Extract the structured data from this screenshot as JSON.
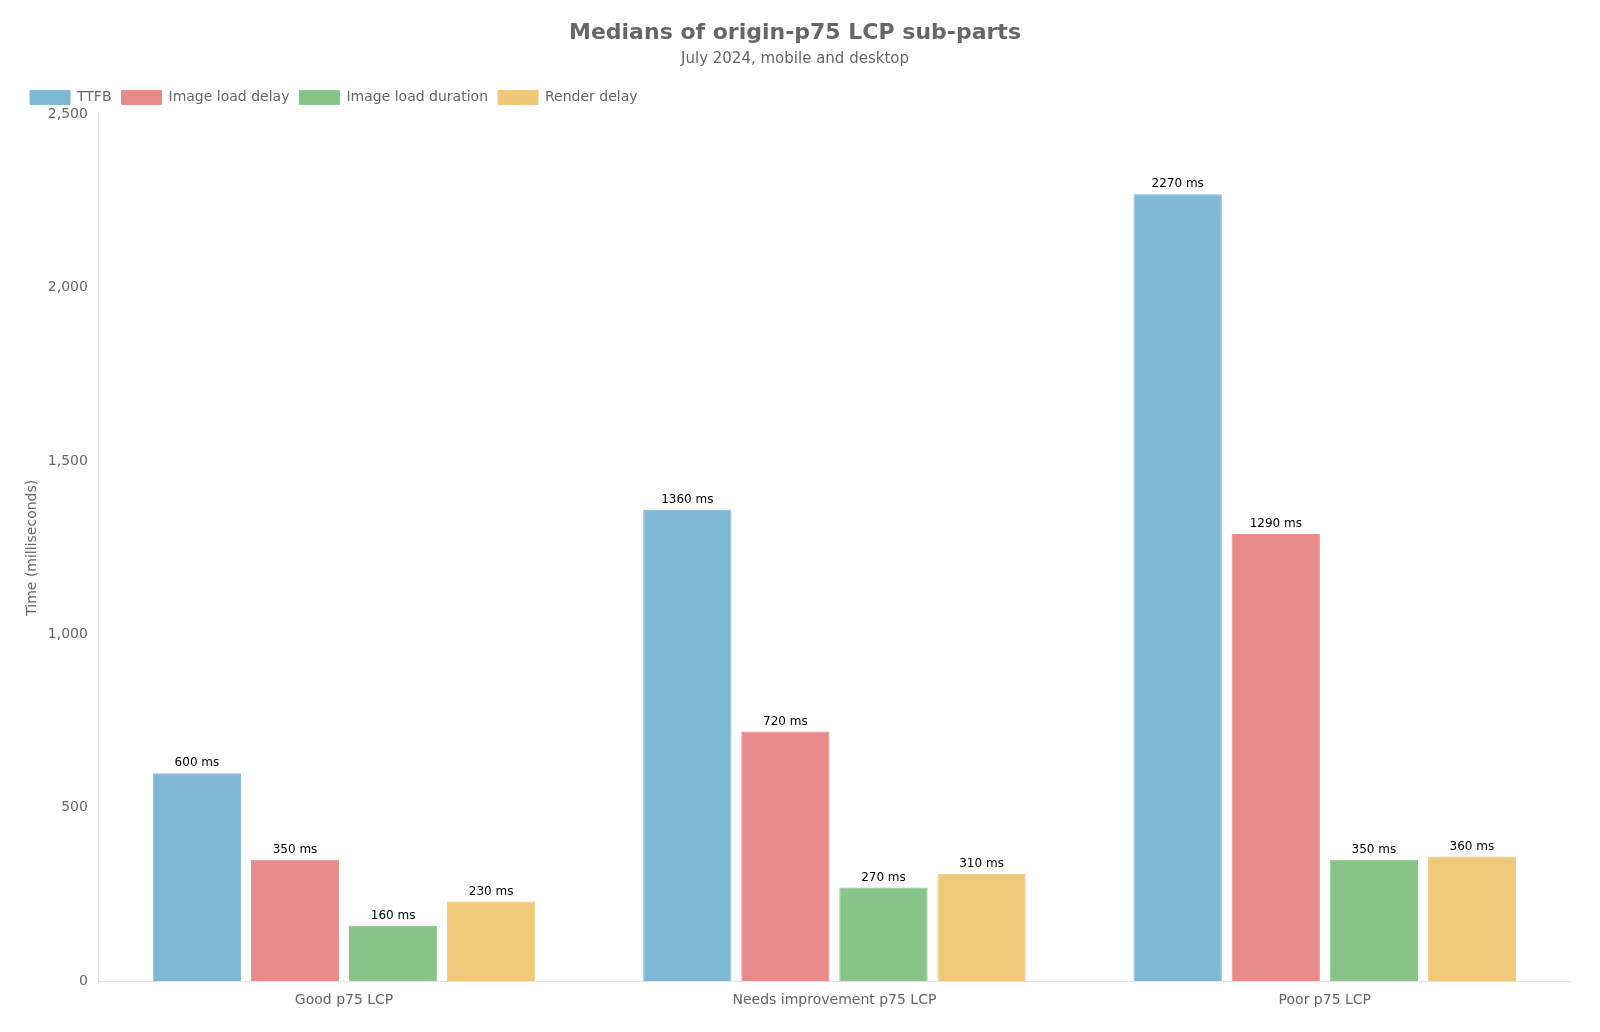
{
  "chart_data": {
    "type": "bar",
    "title": "Medians of origin-p75 LCP sub-parts",
    "subtitle": "July 2024, mobile and desktop",
    "categories": [
      "Good p75 LCP",
      "Needs improvement p75 LCP",
      "Poor p75 LCP"
    ],
    "series": [
      {
        "name": "TTFB",
        "color": "#7eb8d4",
        "values": [
          600,
          1360,
          2270
        ],
        "value_labels": [
          "600 ms",
          "1360 ms",
          "2270 ms"
        ]
      },
      {
        "name": "Image load delay",
        "color": "#e88a8a",
        "values": [
          350,
          720,
          1290
        ],
        "value_labels": [
          "350 ms",
          "720 ms",
          "1290 ms"
        ]
      },
      {
        "name": "Image load duration",
        "color": "#88c488",
        "values": [
          160,
          270,
          350
        ],
        "value_labels": [
          "160 ms",
          "270 ms",
          "350 ms"
        ]
      },
      {
        "name": "Render delay",
        "color": "#f0c87a",
        "values": [
          230,
          310,
          360
        ],
        "value_labels": [
          "230 ms",
          "310 ms",
          "360 ms"
        ]
      }
    ],
    "ylabel": "Time (milliseconds)",
    "ylim": [
      0,
      2500
    ],
    "yticks": [
      0,
      500,
      1000,
      1500,
      2000,
      2500
    ],
    "grid": false,
    "legend": "top-left",
    "data_labels": true
  }
}
